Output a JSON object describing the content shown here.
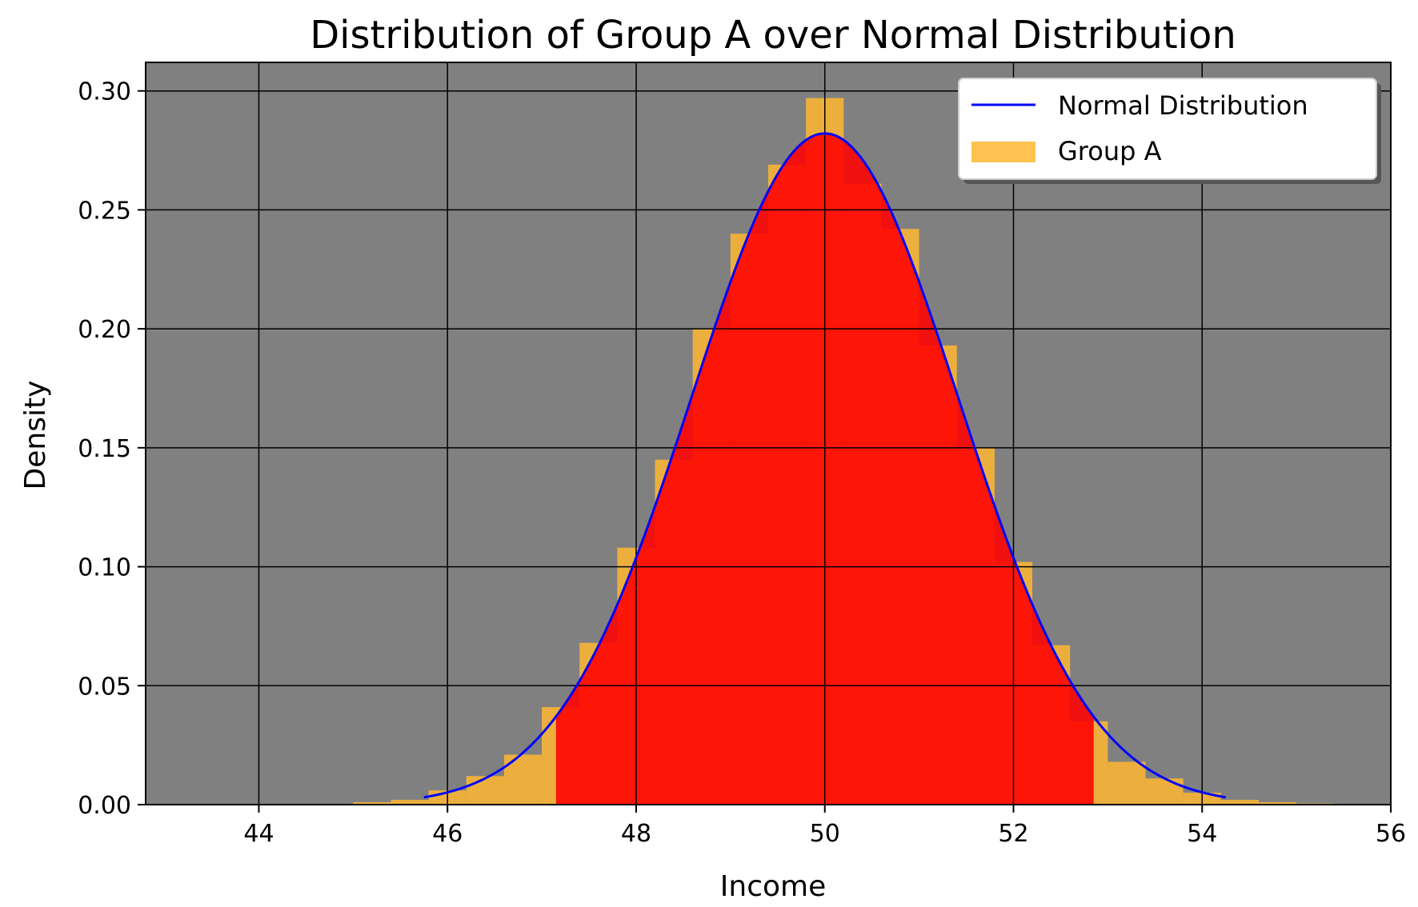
{
  "chart_data": {
    "type": "bar",
    "title": "Distribution of Group A over Normal Distribution",
    "xlabel": "Income",
    "ylabel": "Density",
    "xlim": [
      42.8,
      56.0
    ],
    "ylim": [
      0,
      0.312
    ],
    "xticks": [
      44,
      46,
      48,
      50,
      52,
      54,
      56
    ],
    "yticks": [
      0.0,
      0.05,
      0.1,
      0.15,
      0.2,
      0.25,
      0.3
    ],
    "ytick_labels": [
      "0.00",
      "0.05",
      "0.10",
      "0.15",
      "0.20",
      "0.25",
      "0.30"
    ],
    "grid": true,
    "legend_position": "top-right",
    "colors": {
      "plot_background": "#808080",
      "histogram": "#FFB732",
      "shaded_region": "#FF0000",
      "curve": "#0000FF",
      "grid": "#000000"
    },
    "histogram": {
      "name": "Group A",
      "bin_width": 0.4,
      "bin_starts": [
        45.0,
        45.4,
        45.8,
        46.2,
        46.6,
        47.0,
        47.4,
        47.8,
        48.2,
        48.6,
        49.0,
        49.4,
        49.8,
        50.2,
        50.6,
        51.0,
        51.4,
        51.8,
        52.2,
        52.6,
        53.0,
        53.4,
        53.8,
        54.2,
        54.6,
        55.0
      ],
      "values": [
        0.001,
        0.002,
        0.006,
        0.012,
        0.021,
        0.041,
        0.068,
        0.108,
        0.145,
        0.2,
        0.24,
        0.269,
        0.297,
        0.261,
        0.242,
        0.193,
        0.15,
        0.102,
        0.067,
        0.035,
        0.018,
        0.011,
        0.005,
        0.002,
        0.001,
        0.0005
      ]
    },
    "normal_curve": {
      "name": "Normal Distribution",
      "mean": 50,
      "std": 1.414,
      "x_range": [
        45.75,
        54.25
      ]
    },
    "shaded_region": {
      "x_range": [
        47.15,
        52.85
      ]
    }
  }
}
